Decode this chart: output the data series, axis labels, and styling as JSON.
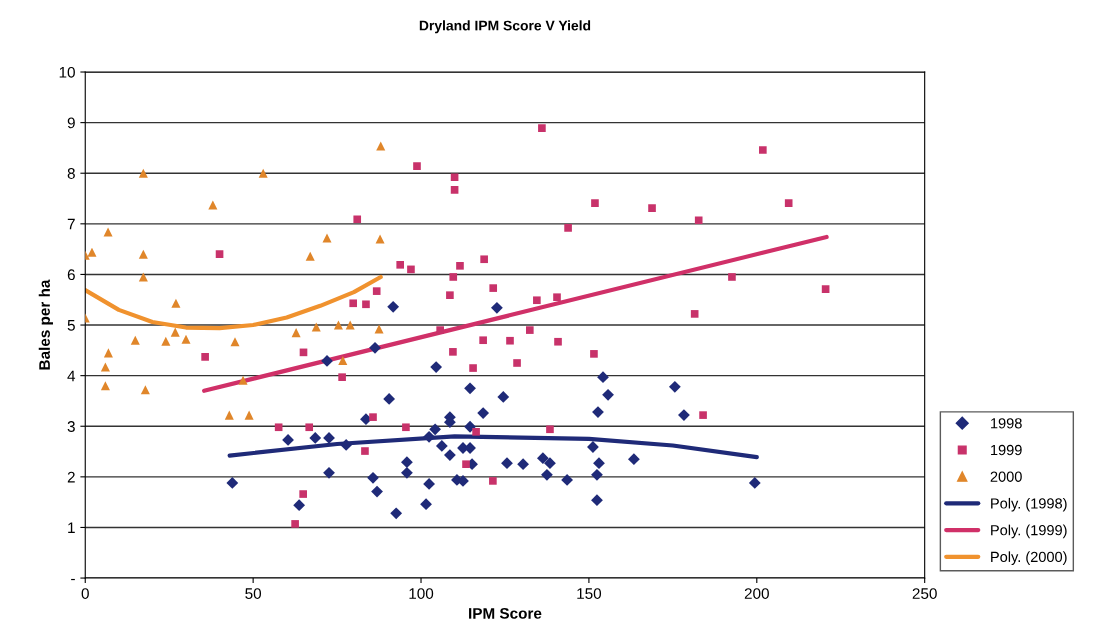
{
  "chart_data": {
    "type": "scatter",
    "title": "Dryland IPM Score V Yield",
    "xlabel": "IPM Score",
    "ylabel": "Bales per ha",
    "xlim": [
      0,
      250
    ],
    "xticks": [
      0,
      50,
      100,
      150,
      200,
      250
    ],
    "ylim": [
      0,
      10
    ],
    "yticks": [
      {
        "value": 0,
        "label": "-"
      },
      1,
      2,
      3,
      4,
      5,
      6,
      7,
      8,
      9,
      10
    ],
    "grid": "y",
    "legend": "right",
    "series": [
      {
        "name": "1998",
        "marker": "diamond",
        "color": "#1f2a78",
        "x": [
          43.8,
          60.4,
          68.5,
          72.6,
          77.7,
          72,
          72.6,
          63.7,
          86.3,
          90.5,
          83.6,
          85.7,
          86.9,
          92.6,
          95.8,
          95.8,
          102.4,
          101.5,
          104.5,
          104.2,
          102.4,
          108.6,
          106.2,
          108.6,
          91.7,
          122.6,
          114.6,
          124.5,
          118.5,
          108.6,
          114.6,
          112.5,
          114.6,
          115.2,
          125.6,
          130.4,
          136.3,
          138.4,
          137.5,
          143.5,
          110.7,
          112.5,
          154.2,
          155.7,
          152.7,
          175.6,
          178.3,
          151.2,
          153,
          152.4,
          152.4,
          163.4,
          199.4
        ],
        "values": [
          1.88,
          2.73,
          2.77,
          2.77,
          2.63,
          4.29,
          2.08,
          1.44,
          4.55,
          3.54,
          3.14,
          1.98,
          1.71,
          1.28,
          2.29,
          2.08,
          1.86,
          1.46,
          4.17,
          2.94,
          2.79,
          3.18,
          2.61,
          2.43,
          5.36,
          5.34,
          3.75,
          3.58,
          3.26,
          3.08,
          2.99,
          2.57,
          2.57,
          2.25,
          2.27,
          2.25,
          2.37,
          2.27,
          2.04,
          1.94,
          1.94,
          1.92,
          3.97,
          3.62,
          3.28,
          3.78,
          3.22,
          2.59,
          2.27,
          2.04,
          1.54,
          2.35,
          1.88
        ]
      },
      {
        "name": "1999",
        "marker": "square",
        "color": "#c8326a",
        "x": [
          40,
          35.7,
          65,
          57.6,
          66.7,
          136,
          98.8,
          110,
          110,
          81,
          93.8,
          97,
          111.6,
          118.8,
          109.6,
          86.8,
          108.6,
          121.5,
          79.8,
          83.6,
          134.5,
          140.5,
          132.4,
          105.7,
          118.5,
          126.5,
          140.8,
          109.5,
          128.6,
          115.5,
          76.5,
          85.7,
          95.5,
          138.4,
          116.4,
          201.8,
          151.8,
          168.8,
          209.5,
          182.7,
          143.8,
          192.6,
          220.5,
          181.5,
          151.5,
          184,
          83.3,
          64.9,
          62.5,
          113.4,
          121.4
        ],
        "values": [
          6.4,
          4.37,
          4.46,
          2.98,
          2.98,
          8.89,
          8.14,
          7.92,
          7.67,
          7.09,
          6.19,
          6.1,
          6.17,
          6.3,
          5.95,
          5.67,
          5.59,
          5.73,
          5.43,
          5.41,
          5.49,
          5.55,
          4.9,
          4.9,
          4.7,
          4.69,
          4.67,
          4.47,
          4.25,
          4.15,
          3.97,
          3.18,
          2.98,
          2.94,
          2.89,
          8.46,
          7.41,
          7.31,
          7.41,
          7.07,
          6.92,
          5.95,
          5.71,
          5.22,
          4.43,
          3.22,
          2.51,
          1.66,
          1.07,
          2.25,
          1.92
        ]
      },
      {
        "name": "2000",
        "marker": "triangle",
        "color": "#e0862a",
        "x": [
          0,
          2,
          0,
          6.8,
          6,
          6,
          6.9,
          17.3,
          17.3,
          17.3,
          17.9,
          14.9,
          24,
          27,
          26.8,
          30,
          38,
          42.9,
          44.6,
          47,
          48.8,
          53,
          62.8,
          67,
          68.8,
          72,
          75.4,
          76.7,
          78.9,
          87.5,
          87.8,
          88
        ],
        "values": [
          6.38,
          6.44,
          5.14,
          6.84,
          4.17,
          3.8,
          4.45,
          8.0,
          6.4,
          5.95,
          3.72,
          4.7,
          4.68,
          5.43,
          4.86,
          4.72,
          7.37,
          3.22,
          4.67,
          3.91,
          3.22,
          8.0,
          4.85,
          6.36,
          4.96,
          6.72,
          5.0,
          4.3,
          5.0,
          4.92,
          6.7,
          8.54
        ]
      },
      {
        "name": "Poly. (1998)",
        "type": "line",
        "marker": "none",
        "color": "#1f2a78",
        "x": [
          43,
          75,
          110,
          150,
          175,
          200
        ],
        "values": [
          2.42,
          2.65,
          2.8,
          2.75,
          2.62,
          2.39
        ]
      },
      {
        "name": "Poly. (1999)",
        "type": "line",
        "marker": "none",
        "color": "#d03068",
        "x": [
          35.4,
          220.8
        ],
        "values": [
          3.7,
          6.74
        ]
      },
      {
        "name": "Poly. (2000)",
        "type": "line",
        "marker": "none",
        "color": "#f0922e",
        "x": [
          0,
          10,
          20,
          30,
          40,
          50,
          60,
          70,
          80,
          88
        ],
        "values": [
          5.69,
          5.3,
          5.06,
          4.95,
          4.94,
          5.0,
          5.15,
          5.38,
          5.65,
          5.95
        ]
      }
    ]
  }
}
